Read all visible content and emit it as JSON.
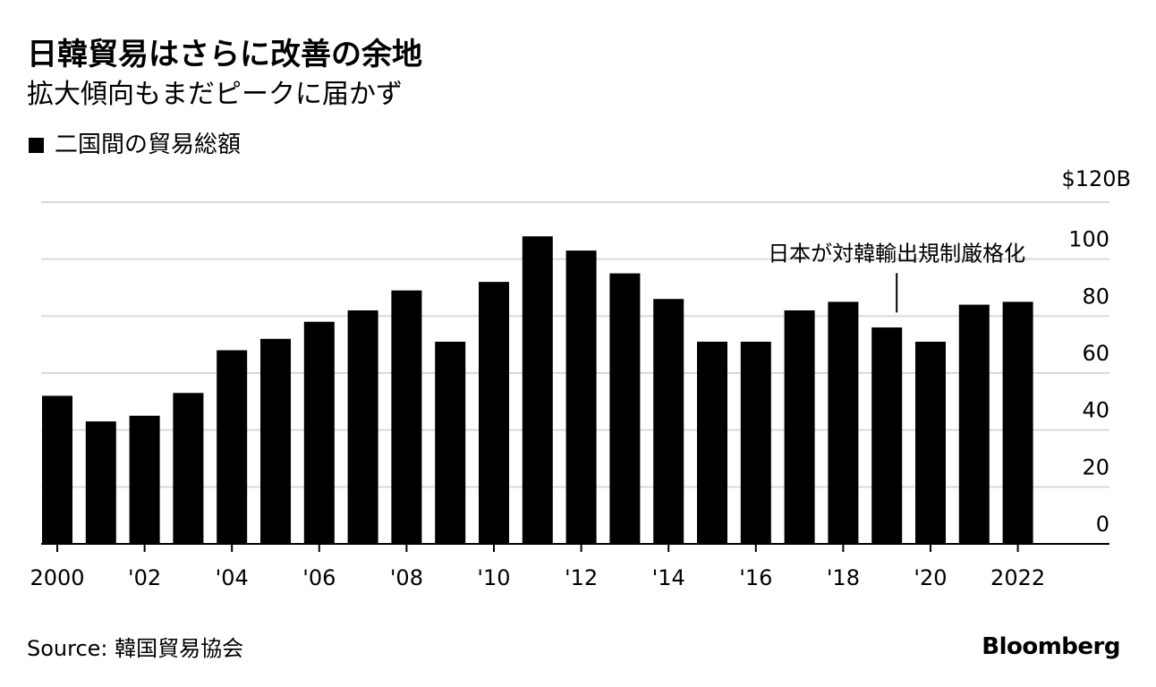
{
  "header": {
    "title": "日韓貿易はさらに改善の余地",
    "subtitle": "拡大傾向もまだピークに届かず"
  },
  "legend": {
    "label": "二国間の貿易総額",
    "color": "#000000"
  },
  "footer": {
    "source": "Source: 韓国貿易協会",
    "brand": "Bloomberg"
  },
  "chart_data": {
    "type": "bar",
    "title": "日韓貿易はさらに改善の余地",
    "subtitle": "拡大傾向もまだピークに届かず",
    "series": [
      {
        "name": "二国間の貿易総額",
        "values": [
          52,
          43,
          45,
          53,
          68,
          72,
          78,
          82,
          89,
          71,
          92,
          108,
          103,
          95,
          86,
          71,
          71,
          82,
          85,
          76,
          71,
          84,
          85
        ]
      }
    ],
    "x": [
      2000,
      2001,
      2002,
      2003,
      2004,
      2005,
      2006,
      2007,
      2008,
      2009,
      2010,
      2011,
      2012,
      2013,
      2014,
      2015,
      2016,
      2017,
      2018,
      2019,
      2020,
      2021,
      2022
    ],
    "xtick_labels": [
      "2000",
      "'02",
      "'04",
      "'06",
      "'08",
      "'10",
      "'12",
      "'14",
      "'16",
      "'18",
      "'20",
      "2022"
    ],
    "xtick_years": [
      2000,
      2002,
      2004,
      2006,
      2008,
      2010,
      2012,
      2014,
      2016,
      2018,
      2020,
      2022
    ],
    "yticks": [
      0,
      20,
      40,
      60,
      80,
      100,
      120
    ],
    "ytick_labels": [
      "0",
      "20",
      "40",
      "60",
      "80",
      "100",
      "$120B"
    ],
    "ylim": [
      0,
      120
    ],
    "xlabel": "",
    "ylabel": "",
    "grid": true,
    "bar_color": "#000000",
    "grid_color": "#d9d9d9",
    "annotation": {
      "text": "日本が対韓輸出規制厳格化",
      "year": 2019,
      "value": 80
    }
  }
}
